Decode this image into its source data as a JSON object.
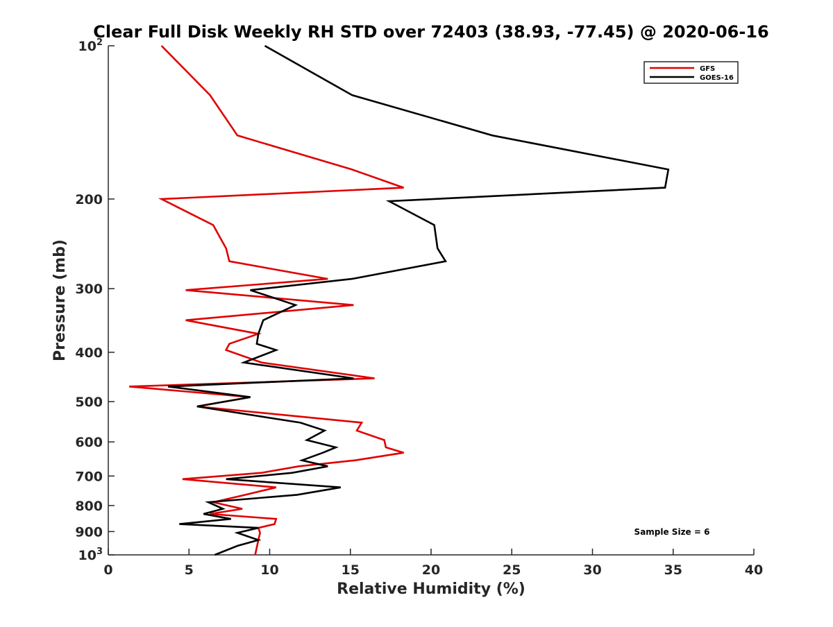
{
  "chart_data": {
    "type": "line",
    "title": "Clear Full Disk Weekly RH STD over 72403 (38.93, -77.45) @ 2020-06-16",
    "xlabel": "Relative Humidity (%)",
    "ylabel": "Pressure (mb)",
    "xlim": [
      0,
      40
    ],
    "ylim": [
      100,
      1000
    ],
    "yscale": "log",
    "y_reversed": true,
    "x_ticks": [
      0,
      5,
      10,
      15,
      20,
      25,
      30,
      35,
      40
    ],
    "x_tick_labels": [
      "0",
      "5",
      "10",
      "15",
      "20",
      "25",
      "30",
      "35",
      "40"
    ],
    "y_ticks": [
      100,
      200,
      300,
      400,
      500,
      600,
      700,
      800,
      900,
      1000
    ],
    "y_tick_labels": [
      {
        "base": "10",
        "exp": "2"
      },
      {
        "base": "200",
        "exp": ""
      },
      {
        "base": "300",
        "exp": ""
      },
      {
        "base": "400",
        "exp": ""
      },
      {
        "base": "500",
        "exp": ""
      },
      {
        "base": "600",
        "exp": ""
      },
      {
        "base": "700",
        "exp": ""
      },
      {
        "base": "800",
        "exp": ""
      },
      {
        "base": "900",
        "exp": ""
      },
      {
        "base": "10",
        "exp": "3"
      }
    ],
    "grid": false,
    "legend_position": "top-right",
    "series": [
      {
        "name": "GFS",
        "color": "#e00000",
        "x": [
          3.3,
          6.3,
          8.0,
          15.1,
          18.3,
          3.3,
          6.5,
          7.3,
          7.5,
          13.6,
          4.8,
          15.2,
          4.8,
          9.3,
          7.5,
          7.3,
          9.5,
          16.5,
          1.3,
          8.8,
          5.5,
          15.7,
          15.4,
          17.1,
          17.2,
          18.3,
          15.3,
          11.8,
          9.5,
          4.6,
          10.4,
          8.5,
          6.5,
          8.3,
          6.3,
          10.4,
          10.3,
          9.3,
          9.4,
          9.3,
          9.1
        ],
        "y": [
          100,
          125,
          150,
          175,
          190,
          200,
          225,
          250,
          265,
          287,
          302,
          323,
          346,
          368,
          385,
          396,
          419,
          450,
          467,
          490,
          511,
          550,
          570,
          595,
          615,
          630,
          652,
          670,
          690,
          710,
          737,
          762,
          788,
          812,
          831,
          850,
          870,
          885,
          905,
          935,
          1000
        ]
      },
      {
        "name": "GOES-16",
        "color": "#000000",
        "x": [
          9.7,
          15.1,
          23.8,
          34.7,
          34.5,
          17.4,
          20.2,
          20.4,
          20.9,
          15.1,
          8.8,
          11.6,
          9.6,
          9.3,
          9.2,
          10.4,
          8.4,
          15.2,
          3.7,
          8.8,
          5.5,
          11.9,
          13.4,
          12.3,
          14.1,
          13.3,
          12.0,
          13.6,
          11.4,
          7.3,
          14.4,
          11.7,
          6.2,
          7.1,
          5.9,
          7.6,
          4.4,
          9.3,
          8.0,
          9.3,
          8.0,
          6.6
        ],
        "y": [
          100,
          125,
          150,
          175,
          190,
          202,
          225,
          250,
          265,
          287,
          302,
          323,
          346,
          368,
          385,
          396,
          419,
          450,
          467,
          490,
          511,
          550,
          570,
          595,
          615,
          630,
          652,
          670,
          690,
          710,
          737,
          762,
          788,
          812,
          831,
          850,
          870,
          885,
          905,
          935,
          960,
          1000
        ]
      }
    ],
    "annotations": [
      "Sample Size = 6"
    ]
  }
}
